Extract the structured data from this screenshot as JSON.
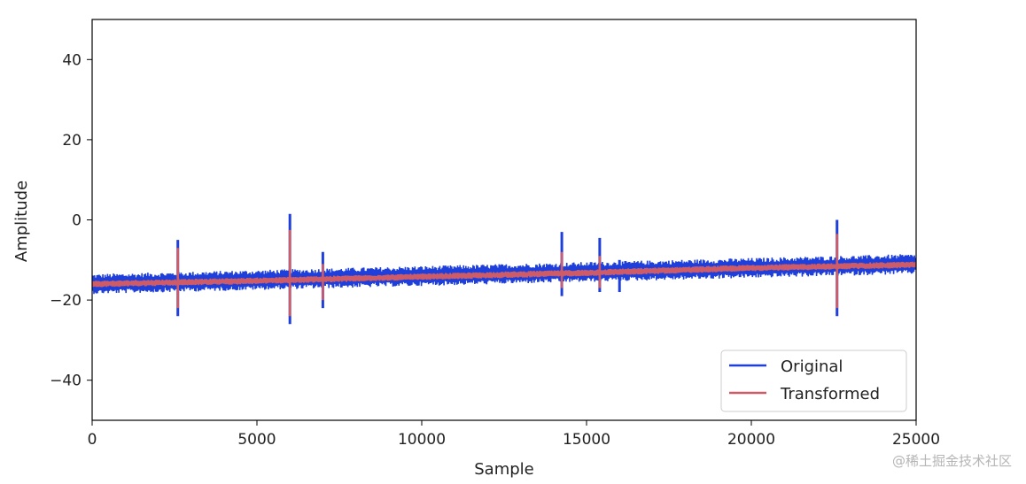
{
  "chart_data": {
    "type": "line",
    "xlabel": "Sample",
    "ylabel": "Amplitude",
    "xlim": [
      0,
      25000
    ],
    "ylim": [
      -50,
      50
    ],
    "x_ticks": [
      0,
      5000,
      10000,
      15000,
      20000,
      25000
    ],
    "y_ticks": [
      -40,
      -20,
      0,
      20,
      40
    ],
    "x_tick_labels": [
      "0",
      "5000",
      "10000",
      "15000",
      "20000",
      "25000"
    ],
    "y_tick_labels": [
      "−40",
      "−20",
      "0",
      "20",
      "40"
    ],
    "grid": false,
    "legend_position": "lower-right",
    "series": [
      {
        "name": "Original",
        "color": "#1f3fdb",
        "baseline": [
          [
            0,
            -16
          ],
          [
            5000,
            -15
          ],
          [
            10000,
            -14
          ],
          [
            15000,
            -13
          ],
          [
            20000,
            -12
          ],
          [
            25000,
            -11
          ]
        ],
        "noise_band": 2.5,
        "spikes": [
          {
            "x": 2600,
            "max": -5,
            "min": -24
          },
          {
            "x": 6000,
            "max": 1.5,
            "min": -26
          },
          {
            "x": 7000,
            "max": -8,
            "min": -22
          },
          {
            "x": 14250,
            "max": -3,
            "min": -19
          },
          {
            "x": 15400,
            "max": -4.5,
            "min": -18
          },
          {
            "x": 16000,
            "max": -10,
            "min": -18
          },
          {
            "x": 22600,
            "max": 0,
            "min": -24
          }
        ]
      },
      {
        "name": "Transformed",
        "color": "#cd5c68",
        "baseline": [
          [
            0,
            -16
          ],
          [
            5000,
            -15.2
          ],
          [
            10000,
            -14.2
          ],
          [
            15000,
            -13.2
          ],
          [
            20000,
            -12
          ],
          [
            25000,
            -11.2
          ]
        ],
        "noise_band": 0.8,
        "spikes": [
          {
            "x": 2600,
            "max": -7,
            "min": -22
          },
          {
            "x": 6000,
            "max": -2.5,
            "min": -24
          },
          {
            "x": 7000,
            "max": -11,
            "min": -20
          },
          {
            "x": 14250,
            "max": -8,
            "min": -17
          },
          {
            "x": 15400,
            "max": -9,
            "min": -17
          },
          {
            "x": 22600,
            "max": -3.5,
            "min": -22
          }
        ]
      }
    ]
  },
  "watermark": "@稀土掘金技术社区"
}
